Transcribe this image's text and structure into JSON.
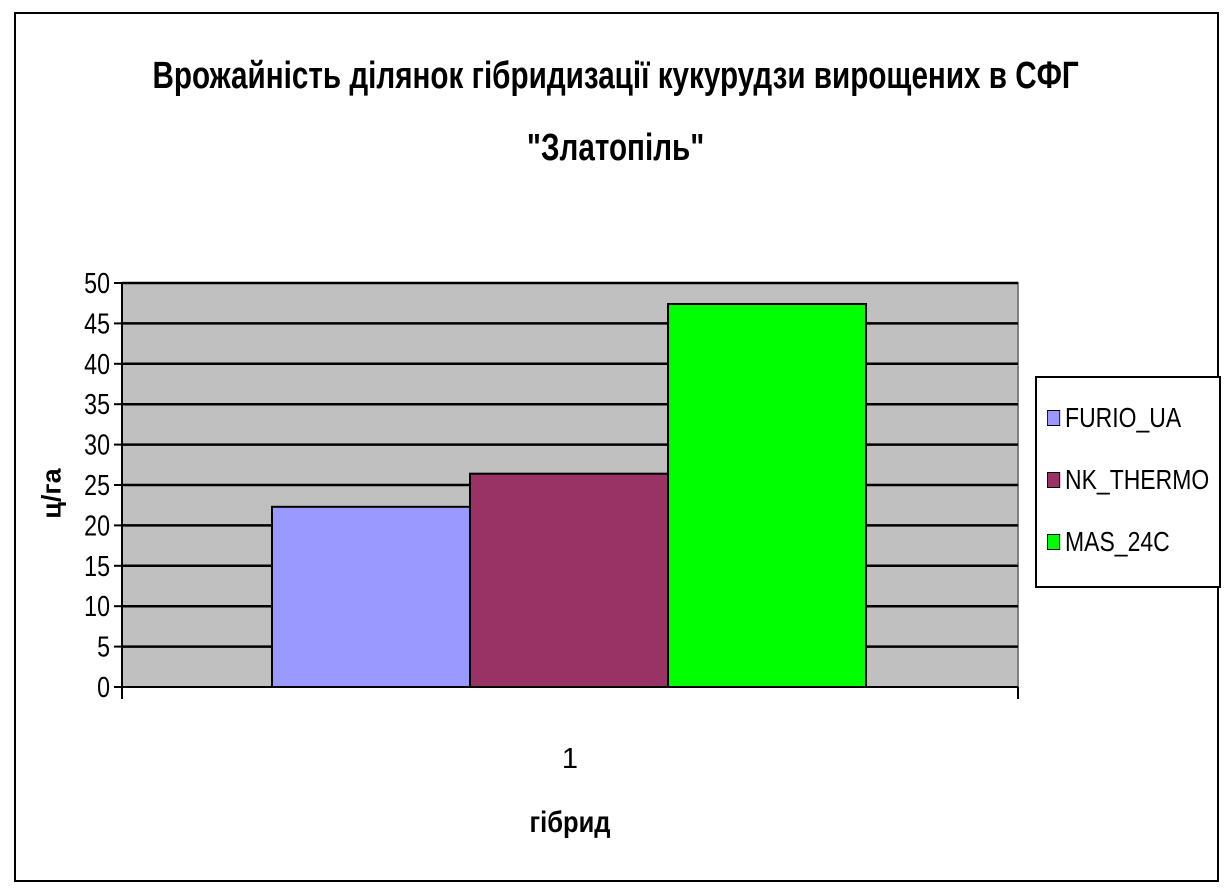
{
  "chart_data": {
    "type": "bar",
    "title_line1": "Врожайність ділянок гібридизації кукурудзи вирощених в СФГ",
    "title_line2": "\"Златопіль\"",
    "xlabel": "гібрид",
    "ylabel": "ц/га",
    "categories": [
      "1"
    ],
    "ylim": [
      0,
      50
    ],
    "yticks": [
      0,
      5,
      10,
      15,
      20,
      25,
      30,
      35,
      40,
      45,
      50
    ],
    "grid": true,
    "legend_position": "right",
    "series": [
      {
        "name": "FURIO_UA",
        "values": [
          22.3
        ],
        "color": "#9999ff"
      },
      {
        "name": "NK_THERMO",
        "values": [
          26.4
        ],
        "color": "#993366"
      },
      {
        "name": "MAS_24C",
        "values": [
          47.4
        ],
        "color": "#00ff00"
      }
    ],
    "plot_background": "#c0c0c0"
  }
}
